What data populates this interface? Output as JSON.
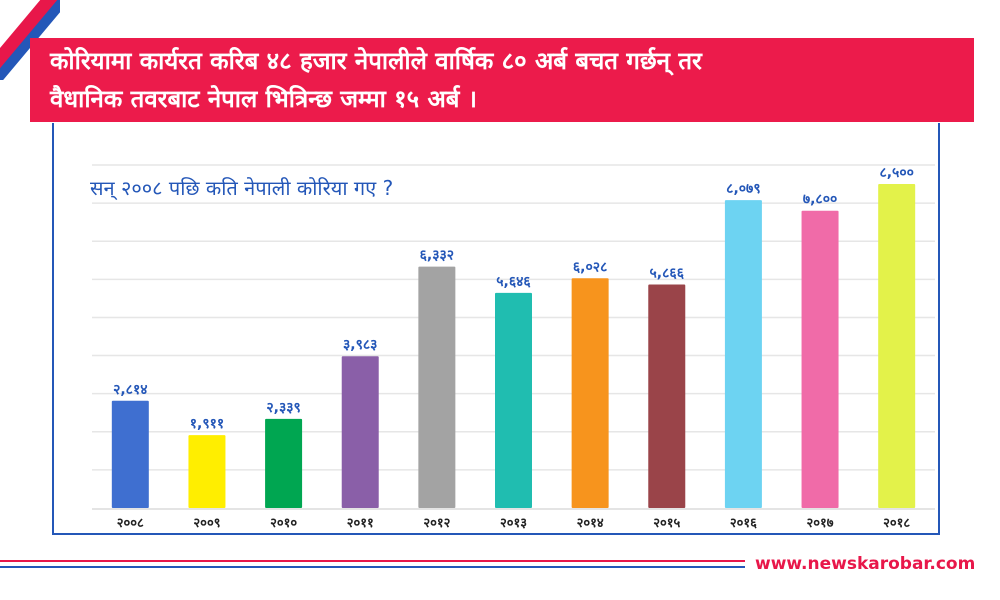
{
  "headline": {
    "line1": "कोरियामा कार्यरत करिब ४८ हजार नेपालीले वार्षिक ८० अर्ब बचत गर्छन् तर",
    "line2": "वैधानिक तवरबाट नेपाल भित्रिन्छ जम्मा १५ अर्ब ।"
  },
  "site": {
    "url": "www.newskarobar.com"
  },
  "colors": {
    "accent_red": "#ec1b4b",
    "accent_blue": "#2457b8"
  },
  "chart_data": {
    "type": "bar",
    "title": "सन् २००८ पछि कति नेपाली कोरिया गए ?",
    "xlabel": "",
    "ylabel": "",
    "ylim": [
      0,
      9000
    ],
    "grid": true,
    "categories": [
      "२००८",
      "२००९",
      "२०१०",
      "२०११",
      "२०१२",
      "२०१३",
      "२०१४",
      "२०१५",
      "२०१६",
      "२०१७",
      "२०१८"
    ],
    "values": [
      2814,
      1911,
      2339,
      3983,
      6332,
      5646,
      6028,
      5866,
      8079,
      7800,
      8500
    ],
    "value_labels": [
      "२,८१४",
      "१,९११",
      "२,३३९",
      "३,९८३",
      "६,३३२",
      "५,६४६",
      "६,०२८",
      "५,८६६",
      "८,०७९",
      "७,८००",
      "८,५००"
    ],
    "bar_colors": [
      "#3f6fd0",
      "#ffee00",
      "#00a651",
      "#8a5fa8",
      "#a3a3a3",
      "#20bdb0",
      "#f7941d",
      "#9a4449",
      "#6dd3f2",
      "#f06ba8",
      "#e3f24a"
    ]
  }
}
